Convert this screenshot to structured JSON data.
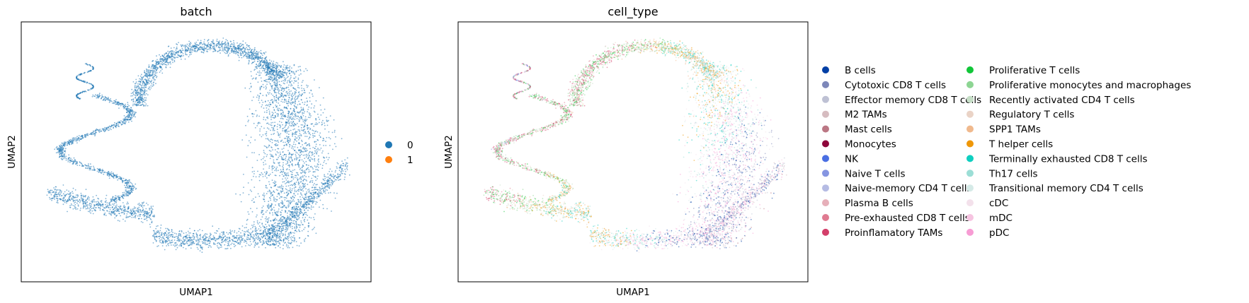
{
  "chart_data": [
    {
      "type": "scatter",
      "title": "batch",
      "xlabel": "UMAP1",
      "ylabel": "UMAP2",
      "grid": false,
      "ticks": false,
      "legend_placement": "right",
      "point_color": "#1f77b4",
      "legend": [
        {
          "label": "0",
          "color": "#1f77b4"
        },
        {
          "label": "1",
          "color": "#ff7f0e"
        }
      ]
    },
    {
      "type": "scatter",
      "title": "cell_type",
      "xlabel": "UMAP1",
      "ylabel": "UMAP2",
      "grid": false,
      "ticks": false,
      "legend_placement": "right",
      "legend": [
        {
          "label": "B cells",
          "color": "#023fa5"
        },
        {
          "label": "Cytotoxic CD8 T cells",
          "color": "#7d87b9"
        },
        {
          "label": "Effector memory CD8 T cells",
          "color": "#bec1d4"
        },
        {
          "label": "M2 TAMs",
          "color": "#d6bcc0"
        },
        {
          "label": "Mast cells",
          "color": "#bb7784"
        },
        {
          "label": "Monocytes",
          "color": "#8e063b"
        },
        {
          "label": "NK",
          "color": "#4a6fe3"
        },
        {
          "label": "Naive T cells",
          "color": "#8595e1"
        },
        {
          "label": "Naive-memory CD4 T cells",
          "color": "#b5bbe3"
        },
        {
          "label": "Plasma B cells",
          "color": "#e6afb9"
        },
        {
          "label": "Pre-exhausted CD8 T cells",
          "color": "#e07b91"
        },
        {
          "label": "Proinflamatory TAMs",
          "color": "#d33f6a"
        },
        {
          "label": "Proliferative T cells",
          "color": "#11c638"
        },
        {
          "label": "Proliferative monocytes and macrophages",
          "color": "#8dd593"
        },
        {
          "label": "Recently activated CD4 T cells",
          "color": "#c6dec7"
        },
        {
          "label": "Regulatory T cells",
          "color": "#ead3c6"
        },
        {
          "label": "SPP1 TAMs",
          "color": "#f0b98d"
        },
        {
          "label": "T helper cells",
          "color": "#ef9708"
        },
        {
          "label": "Terminally exhausted CD8 T cells",
          "color": "#0fcfc0"
        },
        {
          "label": "Th17 cells",
          "color": "#9cded6"
        },
        {
          "label": "Transitional memory CD4 T cells",
          "color": "#d5eae7"
        },
        {
          "label": "cDC",
          "color": "#f3e1eb"
        },
        {
          "label": "mDC",
          "color": "#f6c4e1"
        },
        {
          "label": "pDC",
          "color": "#f79cd4"
        }
      ]
    }
  ]
}
